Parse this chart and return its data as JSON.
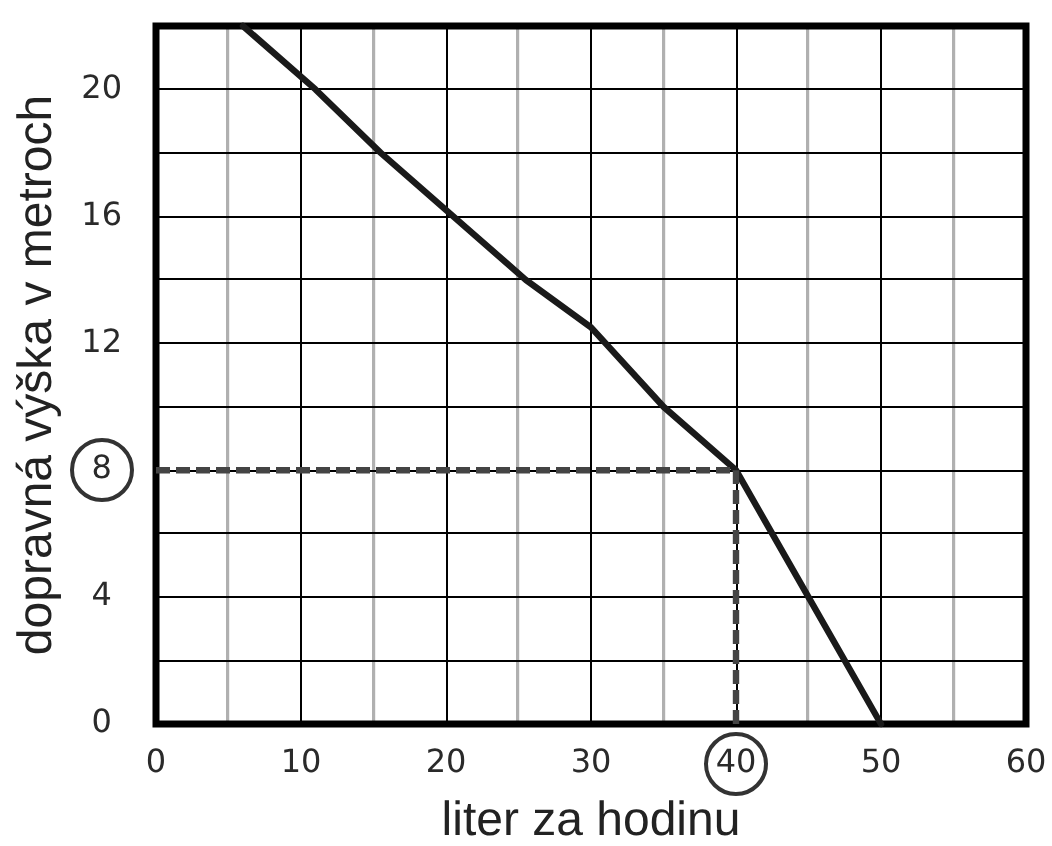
{
  "chart_data": {
    "type": "line",
    "xlabel": "liter za hodinu",
    "ylabel": "dopravná výška v metroch",
    "x": [
      6,
      11,
      15.5,
      20.5,
      25.5,
      30,
      35,
      40,
      45,
      50
    ],
    "series": [
      {
        "color": "#1a1a1a",
        "values": [
          22,
          20,
          18,
          16,
          14,
          12.5,
          10,
          8,
          4,
          0
        ]
      }
    ],
    "ref_lines": [
      {
        "axis": "y",
        "value": 8,
        "color": "#444444",
        "line_style": "dashed"
      },
      {
        "axis": "x",
        "value": 40,
        "color": "#444444",
        "line_style": "dashed"
      }
    ],
    "xlim": [
      0,
      60
    ],
    "xticks": [
      0,
      {
        "value": 5,
        "label": null
      },
      10,
      {
        "value": 15,
        "label": null
      },
      20,
      {
        "value": 25,
        "label": null
      },
      30,
      {
        "value": 35,
        "label": null
      },
      40,
      {
        "value": 45,
        "label": null
      },
      50,
      {
        "value": 55,
        "label": null
      },
      60
    ],
    "ylim": [
      0,
      22
    ],
    "yticks": [
      0,
      {
        "value": 2,
        "label": null
      },
      4,
      {
        "value": 6,
        "label": null
      },
      8,
      {
        "value": 10,
        "label": null
      },
      12,
      {
        "value": 14,
        "label": null
      },
      16,
      {
        "value": 18,
        "label": null
      },
      20
    ],
    "grid": true,
    "legend": false,
    "marker": "none",
    "line_style": "solid"
  }
}
